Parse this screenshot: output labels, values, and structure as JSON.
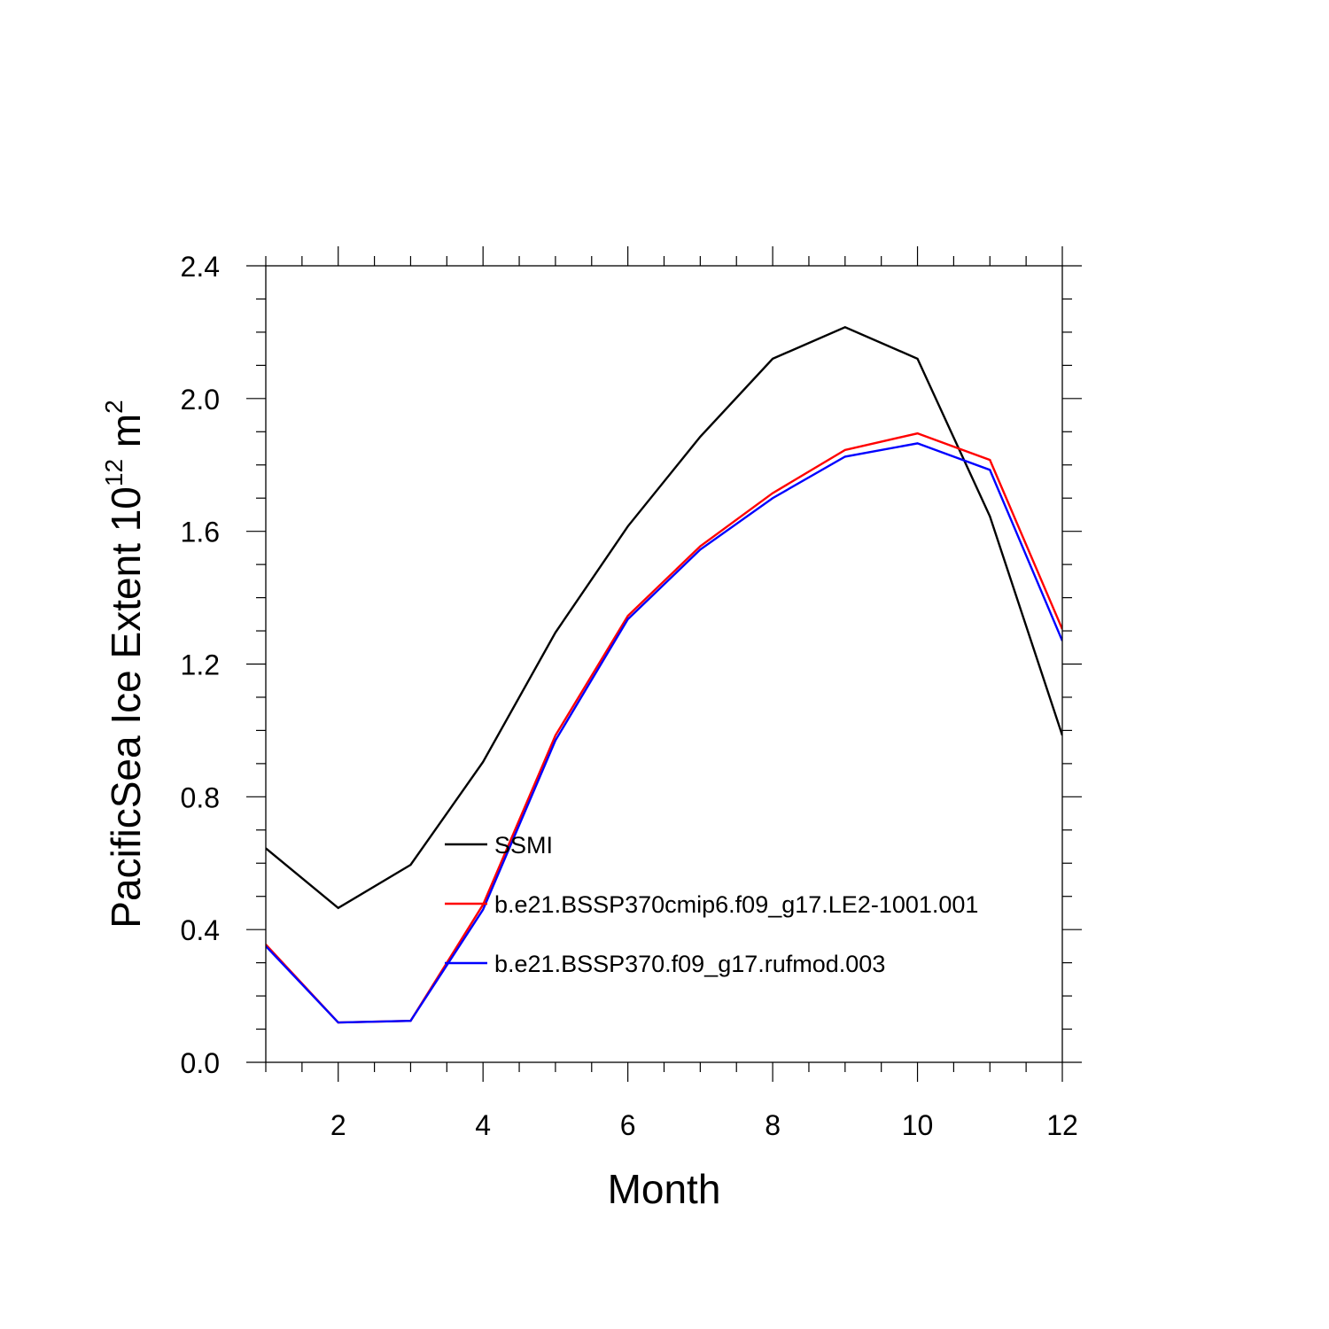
{
  "chart_data": {
    "type": "line",
    "xlabel": "Month",
    "ylabel_main": "PacificSea Ice Extent 10",
    "ylabel_exponent": "12",
    "ylabel_unit": " m",
    "ylabel_unit_exponent": "2",
    "xlim": [
      1,
      12
    ],
    "ylim": [
      0,
      2.4
    ],
    "x_ticks": [
      2,
      4,
      6,
      8,
      10,
      12
    ],
    "x_tick_labels": [
      "2",
      "4",
      "6",
      "8",
      "10",
      "12"
    ],
    "y_ticks": [
      0,
      0.4,
      0.8,
      1.2,
      1.6,
      2.0,
      2.4
    ],
    "y_tick_labels": [
      "0.0",
      "0.4",
      "0.8",
      "1.2",
      "1.6",
      "2.0",
      "2.4"
    ],
    "grid": false,
    "legend_position": "center",
    "x": [
      1,
      2,
      3,
      4,
      5,
      6,
      7,
      8,
      9,
      10,
      11,
      12
    ],
    "series": [
      {
        "name": "SSMI",
        "color": "#000000",
        "values": [
          0.645,
          0.465,
          0.595,
          0.905,
          1.295,
          1.615,
          1.885,
          2.12,
          2.215,
          2.12,
          1.645,
          0.985
        ]
      },
      {
        "name": "b.e21.BSSP370cmip6.f09_g17.LE2-1001.001",
        "color": "#ff0000",
        "values": [
          0.355,
          0.12,
          0.125,
          0.475,
          0.985,
          1.345,
          1.555,
          1.715,
          1.845,
          1.895,
          1.815,
          1.305
        ]
      },
      {
        "name": "b.e21.BSSP370.f09_g17.rufmod.003",
        "color": "#0000ff",
        "values": [
          0.35,
          0.12,
          0.125,
          0.46,
          0.97,
          1.335,
          1.545,
          1.7,
          1.825,
          1.865,
          1.785,
          1.27
        ]
      }
    ]
  }
}
